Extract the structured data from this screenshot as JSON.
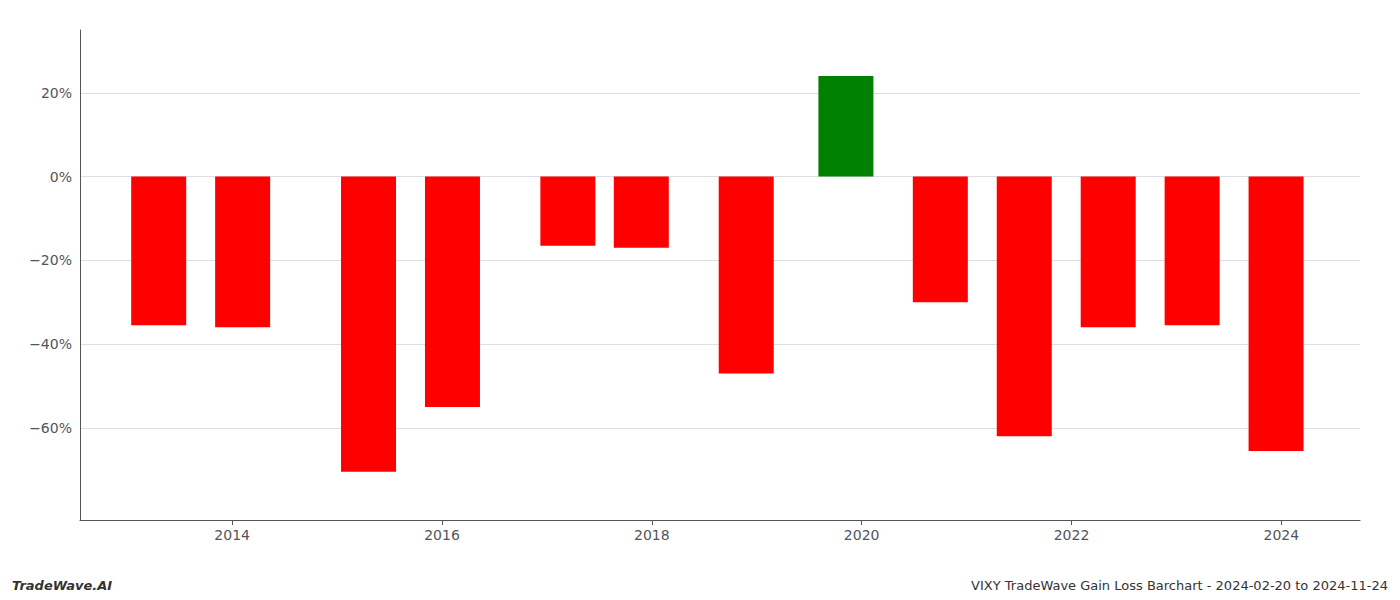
{
  "chart_data": {
    "type": "bar",
    "x": [
      2013.3,
      2014.1,
      2015.3,
      2016.1,
      2017.2,
      2017.9,
      2018.9,
      2019.85,
      2020.75,
      2021.55,
      2022.35,
      2023.15,
      2023.95
    ],
    "values": [
      -35.5,
      -36.0,
      -70.5,
      -55.0,
      -16.5,
      -17.0,
      -47.0,
      24.0,
      -30.0,
      -62.0,
      -36.0,
      -35.5,
      -65.5
    ],
    "colors": [
      "#FF0000",
      "#FF0000",
      "#FF0000",
      "#FF0000",
      "#FF0000",
      "#FF0000",
      "#FF0000",
      "#008000",
      "#FF0000",
      "#FF0000",
      "#FF0000",
      "#FF0000",
      "#FF0000"
    ],
    "xlim": [
      2012.55,
      2024.75
    ],
    "xticks": [
      2014,
      2016,
      2018,
      2020,
      2022,
      2024
    ],
    "ylim": [
      -82,
      35
    ],
    "yticks": [
      {
        "value": 20,
        "label": "20%"
      },
      {
        "value": 0,
        "label": "0%"
      },
      {
        "value": -20,
        "label": "−20%"
      },
      {
        "value": -40,
        "label": "−40%"
      },
      {
        "value": -60,
        "label": "−60%"
      }
    ],
    "grid": true,
    "annotations": [
      "TradeWave.AI",
      "VIXY TradeWave Gain Loss Barchart - 2024-02-20 to 2024-11-24"
    ]
  }
}
